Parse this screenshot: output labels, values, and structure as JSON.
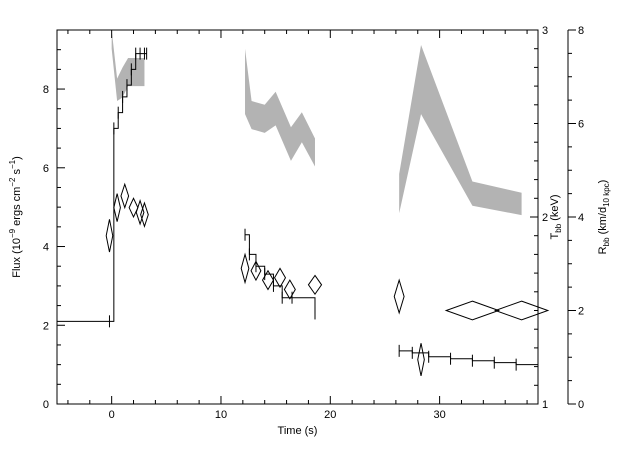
{
  "chart_data": {
    "type": "scatter",
    "title": "",
    "xlabel": "Time (s)",
    "xlim": [
      -5,
      39
    ],
    "xticks": [
      0,
      10,
      20,
      30
    ],
    "left_axis": {
      "label": "Flux (10^-9 ergs cm^-2 s^-1)",
      "ylim": [
        0,
        9.5
      ],
      "ticks": [
        0,
        2,
        4,
        6,
        8
      ]
    },
    "mid_axis": {
      "label": "T_bb (keV)",
      "ylim": [
        1,
        3
      ],
      "ticks": [
        1,
        2,
        3
      ]
    },
    "right_axis": {
      "label": "R_bb (km/d_10 kpc)",
      "ylim": [
        0,
        8
      ],
      "ticks": [
        0,
        2,
        4,
        6,
        8
      ]
    },
    "grid": false,
    "series": [
      {
        "type": "step",
        "axis": "left",
        "x": [
          -5,
          -0.2,
          0.2,
          0.6,
          1.0,
          1.4,
          1.8,
          2.2,
          2.6,
          3.0,
          3.2
        ],
        "y": [
          2.1,
          2.1,
          7.0,
          7.4,
          7.8,
          8.1,
          8.5,
          8.9,
          8.9,
          8.9,
          8.9
        ]
      },
      {
        "type": "step",
        "axis": "left",
        "x": [
          12.2,
          12.6,
          13.2,
          14.0,
          14.8,
          15.6,
          16.5,
          18.6
        ],
        "y": [
          4.3,
          3.8,
          3.5,
          3.3,
          3.0,
          2.7,
          2.7,
          2.3
        ]
      },
      {
        "type": "step",
        "axis": "left",
        "x": [
          26.3,
          27.5,
          29.0,
          31.0,
          33.0,
          35.0,
          37.0,
          39.0
        ],
        "y": [
          1.35,
          1.3,
          1.2,
          1.15,
          1.1,
          1.05,
          1.0,
          0.95
        ]
      },
      {
        "type": "band",
        "axis": "mid",
        "x": [
          0.0,
          0.5,
          1.0,
          1.5,
          2.0,
          2.5,
          3.0
        ],
        "lower": [
          2.9,
          2.62,
          2.64,
          2.7,
          2.7,
          2.7,
          2.7
        ],
        "upper": [
          3.0,
          2.74,
          2.8,
          2.85,
          2.85,
          2.85,
          2.85
        ]
      },
      {
        "type": "band",
        "axis": "mid",
        "x": [
          12.2,
          12.8,
          14.0,
          15.0,
          16.4,
          17.4,
          18.6
        ],
        "lower": [
          2.55,
          2.47,
          2.45,
          2.49,
          2.3,
          2.4,
          2.27
        ],
        "upper": [
          2.9,
          2.62,
          2.6,
          2.67,
          2.48,
          2.56,
          2.42
        ]
      },
      {
        "type": "band",
        "axis": "mid",
        "x": [
          26.3,
          28.3,
          33.0,
          37.5
        ],
        "lower": [
          2.02,
          2.55,
          2.06,
          2.01
        ],
        "upper": [
          2.23,
          2.92,
          2.19,
          2.13
        ]
      },
      {
        "type": "diamond",
        "axis": "right",
        "x": [
          -0.2,
          0.5,
          1.2,
          2.0,
          2.6,
          3.0,
          12.2,
          13.2,
          14.3,
          15.4,
          16.3,
          18.6,
          26.3,
          28.3,
          33.0,
          37.5
        ],
        "y": [
          3.6,
          4.2,
          4.45,
          4.2,
          4.1,
          4.05,
          2.9,
          2.85,
          2.65,
          2.7,
          2.45,
          2.55,
          2.3,
          0.95,
          2.0,
          2.0
        ],
        "dx": [
          0.3,
          0.3,
          0.35,
          0.4,
          0.35,
          0.35,
          0.35,
          0.45,
          0.5,
          0.5,
          0.5,
          0.6,
          0.45,
          0.3,
          2.4,
          2.4
        ],
        "dy": [
          0.35,
          0.3,
          0.25,
          0.2,
          0.25,
          0.25,
          0.3,
          0.2,
          0.2,
          0.2,
          0.2,
          0.2,
          0.35,
          0.35,
          0.2,
          0.2
        ]
      }
    ]
  }
}
